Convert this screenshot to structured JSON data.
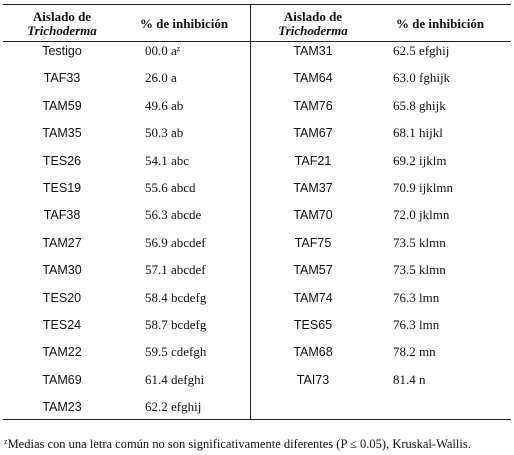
{
  "table": {
    "header": [
      {
        "line1": "Aislado de",
        "line2": "Trichoderma"
      },
      "% de inhibición",
      {
        "line1": "Aislado de",
        "line2": "Trichoderma"
      },
      "% de inhibición"
    ],
    "left": [
      [
        "Testigo",
        "00.0 a"
      ],
      [
        "TAF33",
        "26.0 a"
      ],
      [
        "TAM59",
        "49.6 ab"
      ],
      [
        "TAM35",
        "50.3 ab"
      ],
      [
        "TES26",
        "54.1 abc"
      ],
      [
        "TES19",
        "55.6 abcd"
      ],
      [
        "TAF38",
        "56.3 abcde"
      ],
      [
        "TAM27",
        "56.9 abcdef"
      ],
      [
        "TAM30",
        "57.1 abcdef"
      ],
      [
        "TES20",
        "58.4 bcdefg"
      ],
      [
        "TES24",
        "58.7 bcdefg"
      ],
      [
        "TAM22",
        "59.5 cdefgh"
      ],
      [
        "TAM69",
        "61.4 defghi"
      ],
      [
        "TAM23",
        "62.2 efghij"
      ]
    ],
    "first_value_sup": "z",
    "right": [
      [
        "TAM31",
        "62.5 efghij"
      ],
      [
        "TAM64",
        "63.0 fghijk"
      ],
      [
        "TAM76",
        "65.8 ghijk"
      ],
      [
        "TAM67",
        "68.1 hijkl"
      ],
      [
        "TAF21",
        "69.2 ijklm"
      ],
      [
        "TAM37",
        "70.9 ijklmn"
      ],
      [
        "TAM70",
        "72.0 jklmn"
      ],
      [
        "TAF75",
        "73.5 klmn"
      ],
      [
        "TAM57",
        "73.5 klmn"
      ],
      [
        "TAM74",
        "76.3 lmn"
      ],
      [
        "TES65",
        "76.3 lmn"
      ],
      [
        "TAM68",
        "78.2 mn"
      ],
      [
        "TAI73",
        "81.4 n"
      ]
    ]
  },
  "footnote": {
    "marker": "z",
    "text": "Medias con una letra común no son significativamente diferentes (P ≤ 0.05), Kruskal-Wallis."
  }
}
